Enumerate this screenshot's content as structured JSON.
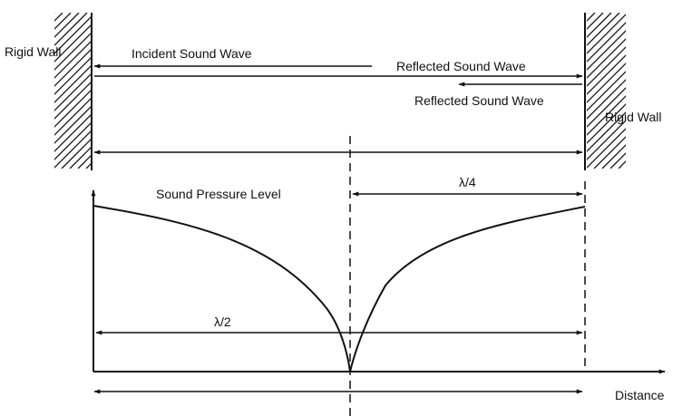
{
  "labels": {
    "rigid_wall_left": "Rigid Wall",
    "rigid_wall_right": "Rigid Wall",
    "incident_wave": "Incident Sound Wave",
    "reflected_wave_1": "Reflected Sound Wave",
    "reflected_wave_2": "Reflected Sound Wave",
    "spl_axis": "Sound Pressure Level",
    "quarter_wavelength": "λ/4",
    "half_wavelength": "λ/2",
    "distance_axis": "Distance"
  }
}
